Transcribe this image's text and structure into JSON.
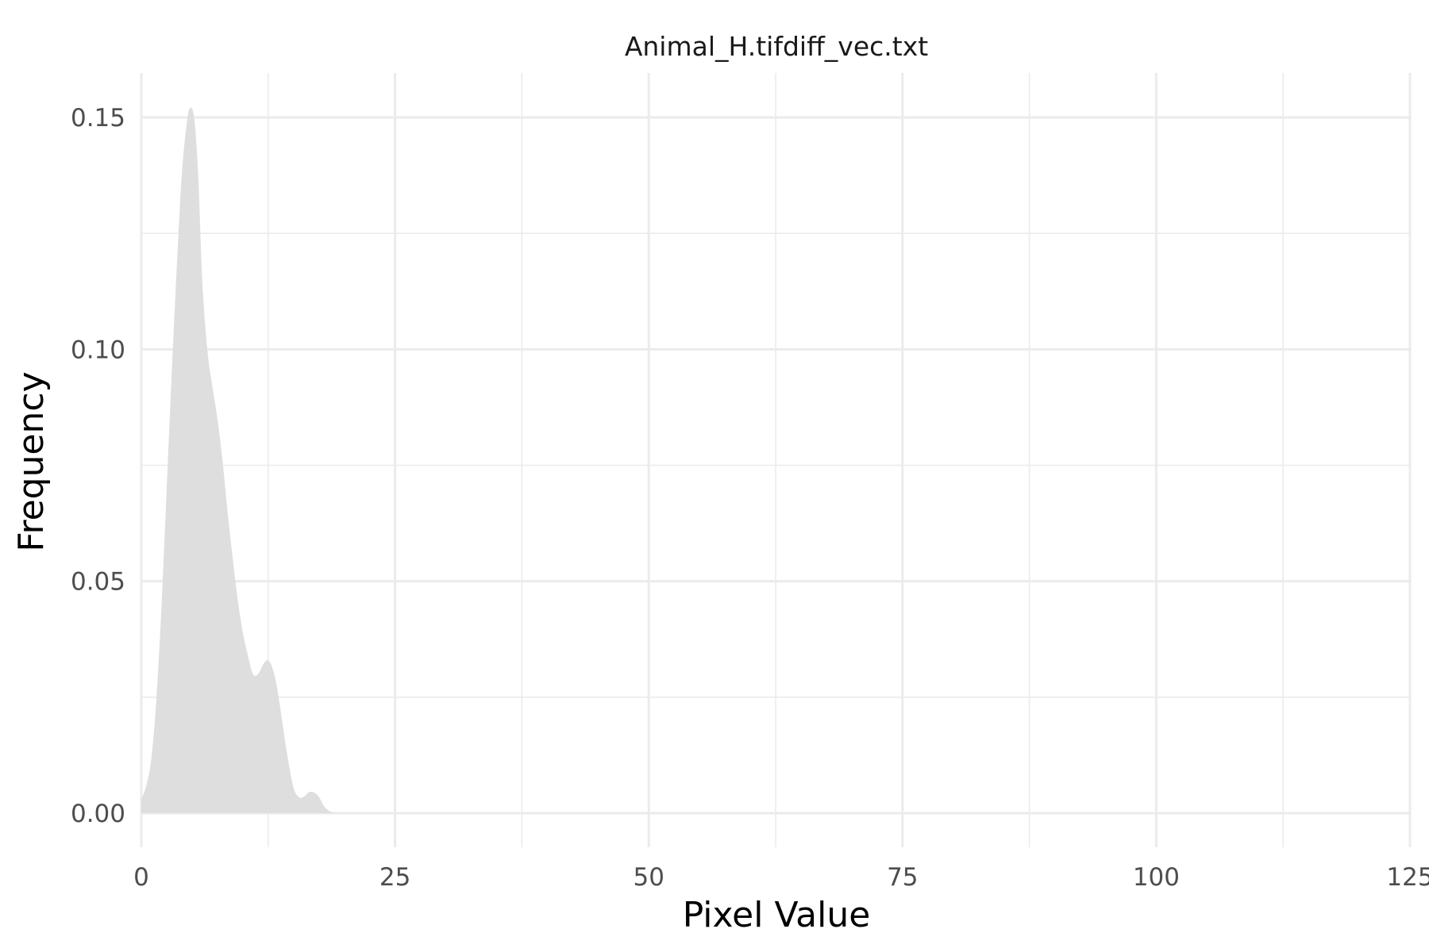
{
  "chart_data": {
    "type": "area",
    "title": "Animal_H.tifdiff_vec.txt",
    "xlabel": "Pixel Value",
    "ylabel": "Frequency",
    "xlim": [
      0,
      125
    ],
    "ylim": [
      0,
      0.15
    ],
    "x_ticks": [
      0,
      25,
      50,
      75,
      100,
      125
    ],
    "x_tick_labels": [
      "0",
      "25",
      "50",
      "75",
      "100",
      "125"
    ],
    "y_ticks": [
      0,
      0.05,
      0.1,
      0.15
    ],
    "y_tick_labels": [
      "0.00",
      "0.05",
      "0.10",
      "0.15"
    ],
    "grid": true,
    "fill_color": "#dedede",
    "series": [
      {
        "x": [
          0,
          0.5,
          1,
          1.5,
          2,
          2.5,
          3,
          3.5,
          4,
          4.5,
          4.8,
          5.2,
          5.6,
          6,
          6.5,
          7,
          7.5,
          8,
          8.5,
          9,
          9.5,
          10,
          10.5,
          11,
          11.5,
          12,
          12.4,
          12.8,
          13.2,
          13.6,
          14,
          14.5,
          15,
          15.5,
          16,
          16.5,
          17,
          17.5,
          18,
          18.5,
          19
        ],
        "y": [
          0.003,
          0.006,
          0.012,
          0.025,
          0.045,
          0.07,
          0.095,
          0.118,
          0.138,
          0.149,
          0.152,
          0.15,
          0.138,
          0.115,
          0.1,
          0.092,
          0.085,
          0.076,
          0.065,
          0.055,
          0.046,
          0.039,
          0.034,
          0.03,
          0.03,
          0.032,
          0.033,
          0.032,
          0.029,
          0.024,
          0.018,
          0.011,
          0.0055,
          0.0035,
          0.0035,
          0.0045,
          0.0045,
          0.0035,
          0.0015,
          0.0005,
          0
        ]
      }
    ]
  }
}
